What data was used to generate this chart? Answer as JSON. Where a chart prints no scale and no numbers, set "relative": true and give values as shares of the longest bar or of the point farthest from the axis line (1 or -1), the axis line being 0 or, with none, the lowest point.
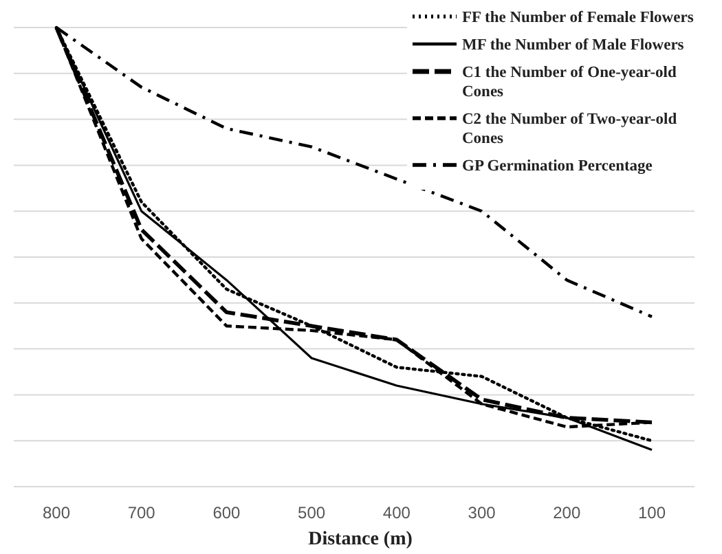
{
  "chart_data": {
    "type": "line",
    "relative": true,
    "xlabel": "Distance (m)",
    "categories": [
      "800",
      "700",
      "600",
      "500",
      "400",
      "300",
      "200",
      "100"
    ],
    "grid": "y",
    "legend": "top right",
    "marker": "none",
    "series": [
      {
        "name": "FF the Number of Female Flowers",
        "color": "#000000",
        "line_style": "dotted",
        "values": [
          1,
          0.62,
          0.43,
          0.35,
          0.26,
          0.24,
          0.15,
          0.1
        ]
      },
      {
        "name": "MF the Number of Male Flowers",
        "color": "#000000",
        "line_style": "solid",
        "values": [
          1,
          0.6,
          0.45,
          0.28,
          0.22,
          0.18,
          0.15,
          0.08
        ]
      },
      {
        "name": "C1 the Number of One-year-old Cones",
        "color": "#000000",
        "line_style": "longdash",
        "values": [
          1,
          0.56,
          0.38,
          0.35,
          0.32,
          0.19,
          0.15,
          0.14
        ]
      },
      {
        "name": "C2 the Number of Two-year-old Cones",
        "color": "#000000",
        "line_style": "dashed",
        "values": [
          1,
          0.54,
          0.35,
          0.34,
          0.32,
          0.18,
          0.13,
          0.14
        ]
      },
      {
        "name": "GP Germination Percentage",
        "color": "#000000",
        "line_style": "dashdot",
        "values": [
          1,
          0.87,
          0.78,
          0.74,
          0.67,
          0.6,
          0.45,
          0.37
        ]
      }
    ]
  }
}
